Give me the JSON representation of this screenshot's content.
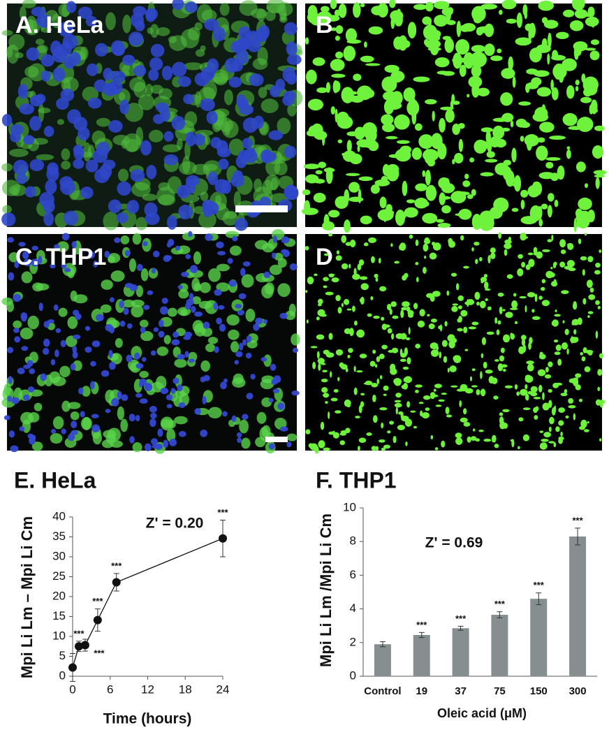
{
  "panels": [
    {
      "label": "A. HeLa"
    },
    {
      "label": "B"
    },
    {
      "label": "C. THP1"
    },
    {
      "label": "D"
    }
  ],
  "chart_data": [
    {
      "type": "line",
      "title": "E. HeLa",
      "annotation": "Z' = 0.20",
      "x_label": "Time (hours)",
      "y_label": "Mpi Li Lm – Mpi Li Cm",
      "x": [
        0,
        1,
        2,
        4,
        7,
        24
      ],
      "values": [
        2.2,
        7.5,
        7.8,
        14.1,
        23.6,
        34.6
      ],
      "errors": [
        3.5,
        1.3,
        1.5,
        2.8,
        2.2,
        4.6
      ],
      "value_labels": [
        null,
        "***",
        "***",
        "***",
        "***",
        "***"
      ],
      "color": "#111111",
      "xlim": [
        0,
        24
      ],
      "xticks": [
        0,
        6,
        12,
        18,
        24
      ],
      "ylim": [
        0,
        40
      ],
      "yticks": [
        0,
        5,
        10,
        15,
        20,
        25,
        30,
        35,
        40
      ]
    },
    {
      "type": "bar",
      "title": "F. THP1",
      "annotation": "Z' = 0.69",
      "x_label": "Oleic acid (μM)",
      "y_label": "Mpi Li Lm /Mpi Li Cm",
      "categories": [
        "Control",
        "19",
        "37",
        "75",
        "150",
        "300"
      ],
      "values": [
        1.9,
        2.45,
        2.85,
        3.65,
        4.6,
        8.3
      ],
      "errors": [
        0.15,
        0.15,
        0.12,
        0.18,
        0.35,
        0.5
      ],
      "value_labels": [
        null,
        "***",
        "***",
        "***",
        "***",
        "***"
      ],
      "color": "#868f8f",
      "ylim": [
        0,
        10
      ],
      "yticks": [
        0,
        2,
        4,
        6,
        8,
        10
      ]
    }
  ]
}
